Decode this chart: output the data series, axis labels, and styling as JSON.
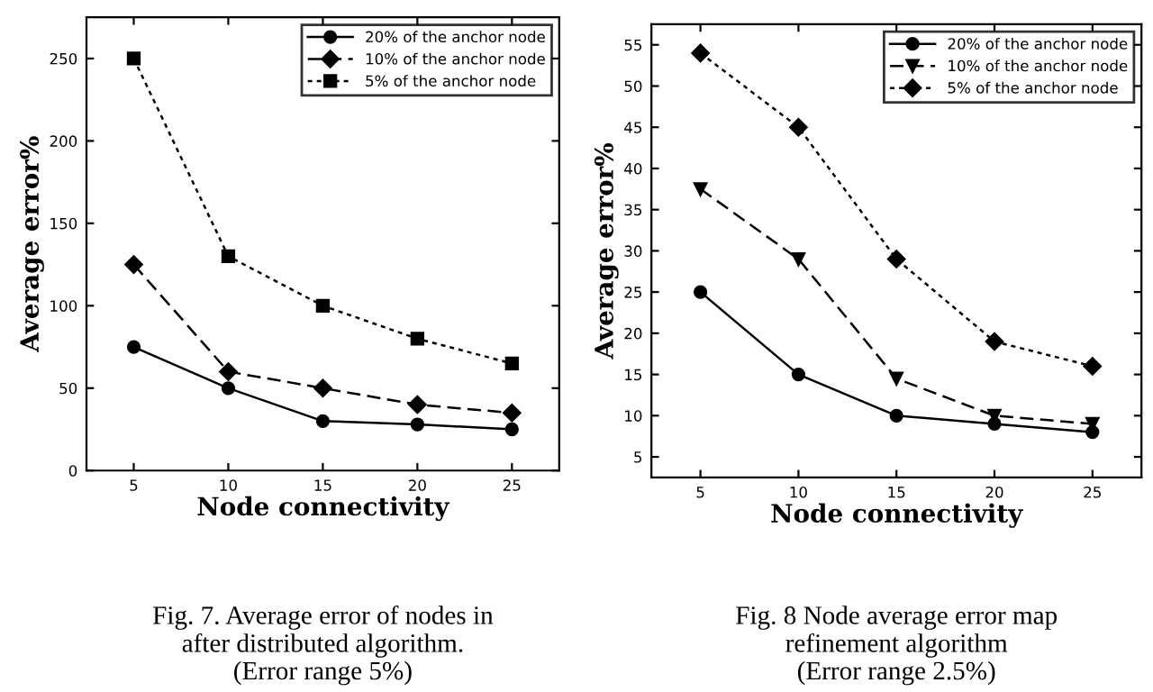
{
  "chart_data": [
    {
      "type": "line",
      "x": [
        5,
        10,
        15,
        20,
        25
      ],
      "xlabel": "Node connectivity",
      "ylabel": "Average error%",
      "xlim": [
        2.5,
        27.5
      ],
      "ylim": [
        0,
        275
      ],
      "xticks": [
        5,
        10,
        15,
        20,
        25
      ],
      "yticks": [
        0,
        50,
        100,
        150,
        200,
        250
      ],
      "grid": false,
      "legend": "top right",
      "series": [
        {
          "name": "20% of the anchor node",
          "color": "#000000",
          "line_style": "solid",
          "marker": "circle",
          "values": [
            75,
            50,
            30,
            28,
            25
          ]
        },
        {
          "name": "10% of the anchor node",
          "color": "#000000",
          "line_style": "dashed",
          "marker": "diamond",
          "values": [
            125,
            60,
            50,
            40,
            35
          ]
        },
        {
          "name": "5% of the anchor node",
          "color": "#000000",
          "line_style": "dotted",
          "marker": "square",
          "values": [
            250,
            130,
            100,
            80,
            65
          ]
        }
      ],
      "annotations": [
        "Fig. 7. Average error of nodes in\nafter distributed algorithm.\n(Error range 5%)"
      ]
    },
    {
      "type": "line",
      "x": [
        5,
        10,
        15,
        20,
        25
      ],
      "xlabel": "Node connectivity",
      "ylabel": "Average error%",
      "xlim": [
        2.5,
        27.5
      ],
      "ylim": [
        2.5,
        57.5
      ],
      "xticks": [
        5,
        10,
        15,
        20,
        25
      ],
      "yticks": [
        5,
        10,
        15,
        20,
        25,
        30,
        35,
        40,
        45,
        50,
        55
      ],
      "grid": false,
      "legend": "top right",
      "series": [
        {
          "name": "20% of the anchor node",
          "color": "#000000",
          "line_style": "solid",
          "marker": "circle",
          "values": [
            25,
            15,
            10,
            9,
            8
          ]
        },
        {
          "name": "10% of the anchor node",
          "color": "#000000",
          "line_style": "dashed",
          "marker": "triangle",
          "values": [
            37.5,
            29,
            14.5,
            10,
            9
          ]
        },
        {
          "name": "5% of the anchor node",
          "color": "#000000",
          "line_style": "dotted",
          "marker": "diamond",
          "values": [
            54,
            45,
            29,
            19,
            16
          ]
        }
      ],
      "annotations": [
        "Fig. 8 Node average error map\nrefinement algorithm\n(Error range 2.5%)"
      ]
    }
  ]
}
